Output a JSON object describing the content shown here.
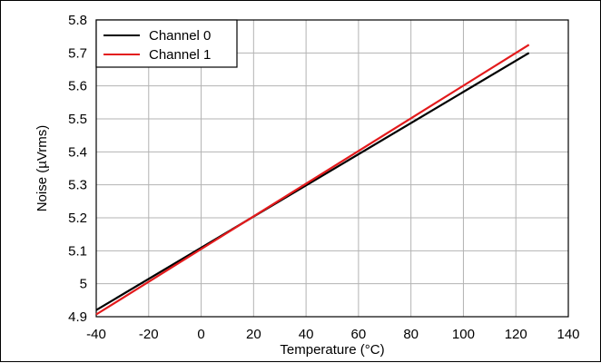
{
  "chart_data": {
    "type": "line",
    "title": "",
    "xlabel": "Temperature (°C)",
    "ylabel": "Noise (µVrms)",
    "xlim": [
      -40,
      140
    ],
    "ylim": [
      4.9,
      5.8
    ],
    "x_ticks": [
      -40,
      -20,
      0,
      20,
      40,
      60,
      80,
      100,
      120,
      140
    ],
    "y_ticks": [
      4.9,
      5,
      5.1,
      5.2,
      5.3,
      5.4,
      5.5,
      5.6,
      5.7,
      5.8
    ],
    "x_tick_labels": [
      "-40",
      "-20",
      "0",
      "20",
      "40",
      "60",
      "80",
      "100",
      "120",
      "140"
    ],
    "y_tick_labels": [
      "4.9",
      "5",
      "5.1",
      "5.2",
      "5.3",
      "5.4",
      "5.5",
      "5.6",
      "5.7",
      "5.8"
    ],
    "grid": true,
    "legend_position": "top-left",
    "series": [
      {
        "name": "Channel 0",
        "color": "#000000",
        "x": [
          -40,
          125
        ],
        "y": [
          4.92,
          5.7
        ]
      },
      {
        "name": "Channel 1",
        "color": "#e31a1c",
        "x": [
          -40,
          125
        ],
        "y": [
          4.907,
          5.725
        ]
      }
    ]
  }
}
